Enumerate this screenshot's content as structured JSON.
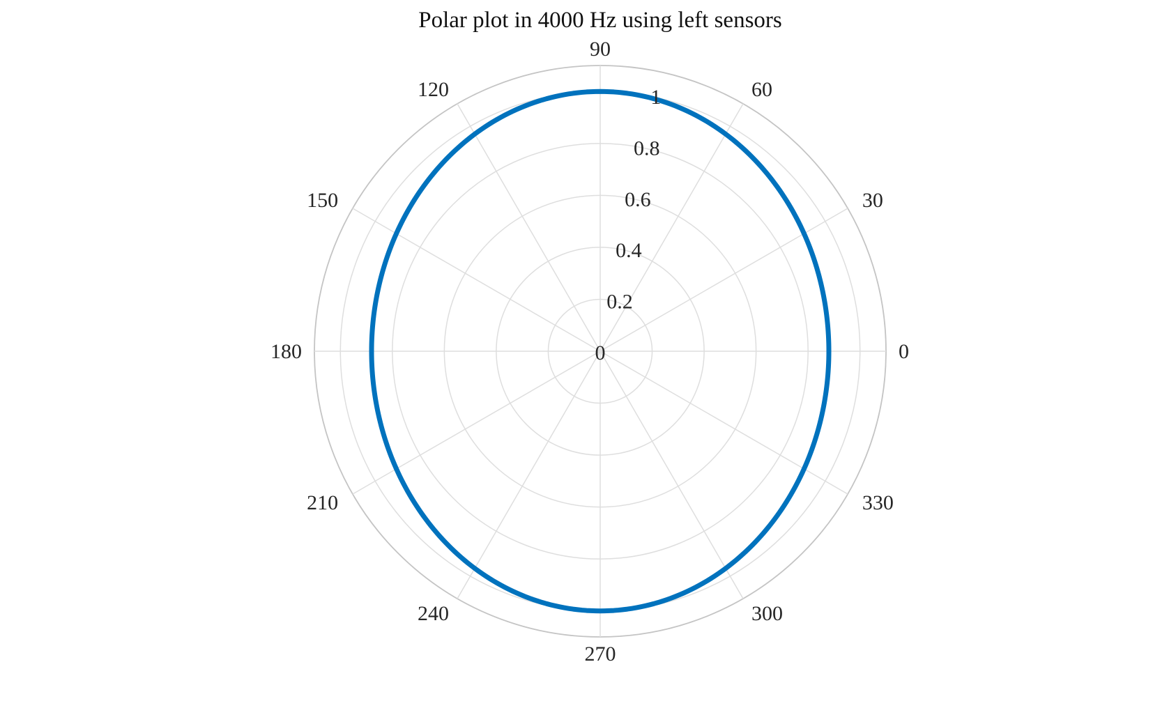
{
  "chart_data": {
    "type": "polar-line",
    "title": "Polar plot in 4000 Hz using left sensors",
    "theta_unit": "degrees",
    "theta_ticks": [
      0,
      30,
      60,
      90,
      120,
      150,
      180,
      210,
      240,
      270,
      300,
      330
    ],
    "theta_tick_labels": [
      "0",
      "30",
      "60",
      "90",
      "120",
      "150",
      "180",
      "210",
      "240",
      "270",
      "300",
      "330"
    ],
    "r_lim": [
      0,
      1.1
    ],
    "r_ticks": [
      0,
      0.2,
      0.4,
      0.6,
      0.8,
      1
    ],
    "r_tick_labels": [
      "0",
      "0.2",
      "0.4",
      "0.6",
      "0.8",
      "1"
    ],
    "r_tick_label_angle_deg": 80,
    "grid": true,
    "series": [
      {
        "name": "left sensors",
        "color": "#0072BD",
        "theta": [
          0,
          30,
          60,
          90,
          120,
          150,
          180,
          210,
          240,
          270,
          300,
          330,
          360
        ],
        "r": [
          0.88,
          0.92,
          0.97,
          1.0,
          0.97,
          0.92,
          0.88,
          0.92,
          0.97,
          1.0,
          0.97,
          0.92,
          0.88
        ],
        "shape_note": "smooth ellipse: r = 1/sqrt(cos^2/0.88^2 + sin^2)"
      }
    ]
  },
  "colors": {
    "grid": "#dedede",
    "outer_ring": "#c4c4c4",
    "series": "#0072BD",
    "text": "#262626"
  }
}
